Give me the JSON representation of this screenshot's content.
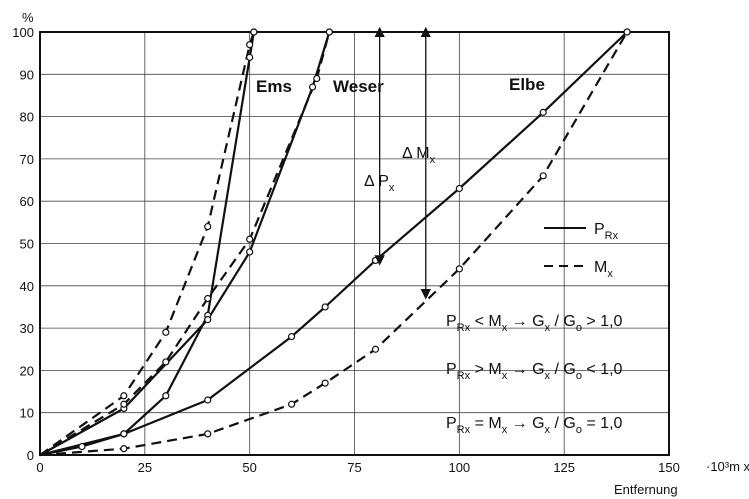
{
  "chart_data": {
    "type": "line",
    "title": "",
    "xlabel": "Entfernung",
    "x_unit": "·10³m x",
    "ylabel": "%",
    "xlim": [
      0,
      150
    ],
    "ylim": [
      0,
      100
    ],
    "xticks": [
      "0",
      "25",
      "50",
      "75",
      "100",
      "125",
      "150"
    ],
    "yticks": [
      "0",
      "10",
      "20",
      "30",
      "40",
      "50",
      "60",
      "70",
      "80",
      "90",
      "100"
    ],
    "grid": true,
    "river_labels": [
      "Ems",
      "Weser",
      "Elbe"
    ],
    "legend": [
      {
        "symbol": "P",
        "sub": "Rx",
        "style": "solid"
      },
      {
        "symbol": "M",
        "sub": "x",
        "style": "dashed"
      }
    ],
    "delta_labels": [
      {
        "symbol": "Δ P",
        "sub": "x"
      },
      {
        "symbol": "Δ M",
        "sub": "x"
      }
    ],
    "relations": [
      {
        "text": "P",
        "sub": "Rx",
        "rest": " < M",
        "sub2": "x",
        "arrow": "→",
        "g": "G",
        "gsub": "x",
        "slash": " / G",
        "osub": "o",
        "cmp": " > 1,0"
      },
      {
        "text": "P",
        "sub": "Rx",
        "rest": " > M",
        "sub2": "x",
        "arrow": "→",
        "g": "G",
        "gsub": "x",
        "slash": " / G",
        "osub": "o",
        "cmp": " < 1,0"
      },
      {
        "text": "P",
        "sub": "Rx",
        "rest": " = M",
        "sub2": "x",
        "arrow": "→",
        "g": "G",
        "gsub": "x",
        "slash": " / G",
        "osub": "o",
        "cmp": " = 1,0"
      }
    ],
    "series": [
      {
        "river": "Ems",
        "quantity": "P_Rx",
        "style": "solid",
        "points": [
          [
            0,
            0
          ],
          [
            20,
            5
          ],
          [
            30,
            14
          ],
          [
            40,
            33
          ],
          [
            50,
            94
          ],
          [
            51,
            100
          ]
        ]
      },
      {
        "river": "Ems",
        "quantity": "M_x",
        "style": "dashed",
        "points": [
          [
            0,
            0
          ],
          [
            20,
            14
          ],
          [
            30,
            29
          ],
          [
            40,
            54
          ],
          [
            50,
            97
          ],
          [
            51,
            100
          ]
        ]
      },
      {
        "river": "Weser",
        "quantity": "P_Rx",
        "style": "solid",
        "points": [
          [
            0,
            0
          ],
          [
            20,
            11
          ],
          [
            40,
            32
          ],
          [
            50,
            48
          ],
          [
            65,
            87
          ],
          [
            69,
            100
          ]
        ]
      },
      {
        "river": "Weser",
        "quantity": "M_x",
        "style": "dashed",
        "points": [
          [
            0,
            0
          ],
          [
            20,
            12
          ],
          [
            30,
            22
          ],
          [
            40,
            37
          ],
          [
            50,
            51
          ],
          [
            66,
            89
          ],
          [
            69,
            100
          ]
        ]
      },
      {
        "river": "Elbe",
        "quantity": "P_Rx",
        "style": "solid",
        "points": [
          [
            0,
            0
          ],
          [
            10,
            2
          ],
          [
            20,
            5
          ],
          [
            40,
            13
          ],
          [
            60,
            28
          ],
          [
            68,
            35
          ],
          [
            80,
            46
          ],
          [
            100,
            63
          ],
          [
            120,
            81
          ],
          [
            140,
            100
          ]
        ]
      },
      {
        "river": "Elbe",
        "quantity": "M_x",
        "style": "dashed",
        "points": [
          [
            0,
            0
          ],
          [
            20,
            1.5
          ],
          [
            40,
            5
          ],
          [
            60,
            12
          ],
          [
            68,
            17
          ],
          [
            80,
            25
          ],
          [
            100,
            44
          ],
          [
            120,
            66
          ],
          [
            140,
            100
          ]
        ]
      }
    ],
    "arrows": [
      {
        "x": 81,
        "y_from": 46,
        "y_to": 100
      },
      {
        "x": 92,
        "y_from": 38,
        "y_to": 100
      }
    ]
  }
}
